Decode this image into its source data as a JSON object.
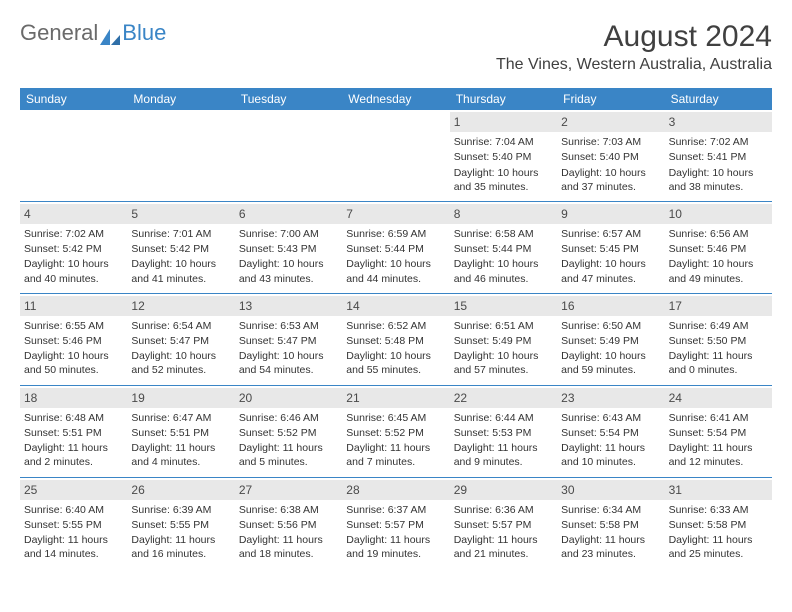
{
  "logo": {
    "general": "General",
    "blue": "Blue"
  },
  "header": {
    "monthTitle": "August 2024",
    "location": "The Vines, Western Australia, Australia"
  },
  "dayNames": [
    "Sunday",
    "Monday",
    "Tuesday",
    "Wednesday",
    "Thursday",
    "Friday",
    "Saturday"
  ],
  "weeks": [
    [
      null,
      null,
      null,
      null,
      {
        "d": "1",
        "sr": "Sunrise: 7:04 AM",
        "ss": "Sunset: 5:40 PM",
        "dl": "Daylight: 10 hours and 35 minutes."
      },
      {
        "d": "2",
        "sr": "Sunrise: 7:03 AM",
        "ss": "Sunset: 5:40 PM",
        "dl": "Daylight: 10 hours and 37 minutes."
      },
      {
        "d": "3",
        "sr": "Sunrise: 7:02 AM",
        "ss": "Sunset: 5:41 PM",
        "dl": "Daylight: 10 hours and 38 minutes."
      }
    ],
    [
      {
        "d": "4",
        "sr": "Sunrise: 7:02 AM",
        "ss": "Sunset: 5:42 PM",
        "dl": "Daylight: 10 hours and 40 minutes."
      },
      {
        "d": "5",
        "sr": "Sunrise: 7:01 AM",
        "ss": "Sunset: 5:42 PM",
        "dl": "Daylight: 10 hours and 41 minutes."
      },
      {
        "d": "6",
        "sr": "Sunrise: 7:00 AM",
        "ss": "Sunset: 5:43 PM",
        "dl": "Daylight: 10 hours and 43 minutes."
      },
      {
        "d": "7",
        "sr": "Sunrise: 6:59 AM",
        "ss": "Sunset: 5:44 PM",
        "dl": "Daylight: 10 hours and 44 minutes."
      },
      {
        "d": "8",
        "sr": "Sunrise: 6:58 AM",
        "ss": "Sunset: 5:44 PM",
        "dl": "Daylight: 10 hours and 46 minutes."
      },
      {
        "d": "9",
        "sr": "Sunrise: 6:57 AM",
        "ss": "Sunset: 5:45 PM",
        "dl": "Daylight: 10 hours and 47 minutes."
      },
      {
        "d": "10",
        "sr": "Sunrise: 6:56 AM",
        "ss": "Sunset: 5:46 PM",
        "dl": "Daylight: 10 hours and 49 minutes."
      }
    ],
    [
      {
        "d": "11",
        "sr": "Sunrise: 6:55 AM",
        "ss": "Sunset: 5:46 PM",
        "dl": "Daylight: 10 hours and 50 minutes."
      },
      {
        "d": "12",
        "sr": "Sunrise: 6:54 AM",
        "ss": "Sunset: 5:47 PM",
        "dl": "Daylight: 10 hours and 52 minutes."
      },
      {
        "d": "13",
        "sr": "Sunrise: 6:53 AM",
        "ss": "Sunset: 5:47 PM",
        "dl": "Daylight: 10 hours and 54 minutes."
      },
      {
        "d": "14",
        "sr": "Sunrise: 6:52 AM",
        "ss": "Sunset: 5:48 PM",
        "dl": "Daylight: 10 hours and 55 minutes."
      },
      {
        "d": "15",
        "sr": "Sunrise: 6:51 AM",
        "ss": "Sunset: 5:49 PM",
        "dl": "Daylight: 10 hours and 57 minutes."
      },
      {
        "d": "16",
        "sr": "Sunrise: 6:50 AM",
        "ss": "Sunset: 5:49 PM",
        "dl": "Daylight: 10 hours and 59 minutes."
      },
      {
        "d": "17",
        "sr": "Sunrise: 6:49 AM",
        "ss": "Sunset: 5:50 PM",
        "dl": "Daylight: 11 hours and 0 minutes."
      }
    ],
    [
      {
        "d": "18",
        "sr": "Sunrise: 6:48 AM",
        "ss": "Sunset: 5:51 PM",
        "dl": "Daylight: 11 hours and 2 minutes."
      },
      {
        "d": "19",
        "sr": "Sunrise: 6:47 AM",
        "ss": "Sunset: 5:51 PM",
        "dl": "Daylight: 11 hours and 4 minutes."
      },
      {
        "d": "20",
        "sr": "Sunrise: 6:46 AM",
        "ss": "Sunset: 5:52 PM",
        "dl": "Daylight: 11 hours and 5 minutes."
      },
      {
        "d": "21",
        "sr": "Sunrise: 6:45 AM",
        "ss": "Sunset: 5:52 PM",
        "dl": "Daylight: 11 hours and 7 minutes."
      },
      {
        "d": "22",
        "sr": "Sunrise: 6:44 AM",
        "ss": "Sunset: 5:53 PM",
        "dl": "Daylight: 11 hours and 9 minutes."
      },
      {
        "d": "23",
        "sr": "Sunrise: 6:43 AM",
        "ss": "Sunset: 5:54 PM",
        "dl": "Daylight: 11 hours and 10 minutes."
      },
      {
        "d": "24",
        "sr": "Sunrise: 6:41 AM",
        "ss": "Sunset: 5:54 PM",
        "dl": "Daylight: 11 hours and 12 minutes."
      }
    ],
    [
      {
        "d": "25",
        "sr": "Sunrise: 6:40 AM",
        "ss": "Sunset: 5:55 PM",
        "dl": "Daylight: 11 hours and 14 minutes."
      },
      {
        "d": "26",
        "sr": "Sunrise: 6:39 AM",
        "ss": "Sunset: 5:55 PM",
        "dl": "Daylight: 11 hours and 16 minutes."
      },
      {
        "d": "27",
        "sr": "Sunrise: 6:38 AM",
        "ss": "Sunset: 5:56 PM",
        "dl": "Daylight: 11 hours and 18 minutes."
      },
      {
        "d": "28",
        "sr": "Sunrise: 6:37 AM",
        "ss": "Sunset: 5:57 PM",
        "dl": "Daylight: 11 hours and 19 minutes."
      },
      {
        "d": "29",
        "sr": "Sunrise: 6:36 AM",
        "ss": "Sunset: 5:57 PM",
        "dl": "Daylight: 11 hours and 21 minutes."
      },
      {
        "d": "30",
        "sr": "Sunrise: 6:34 AM",
        "ss": "Sunset: 5:58 PM",
        "dl": "Daylight: 11 hours and 23 minutes."
      },
      {
        "d": "31",
        "sr": "Sunrise: 6:33 AM",
        "ss": "Sunset: 5:58 PM",
        "dl": "Daylight: 11 hours and 25 minutes."
      }
    ]
  ],
  "styling": {
    "headerBg": "#3a85c6",
    "headerText": "#ffffff",
    "dateBg": "#e8e8e8",
    "separatorColor": "#3a85c6",
    "bodyBg": "#ffffff",
    "textColor": "#333333",
    "titleColor": "#404040",
    "monthTitleFontSize": 30,
    "locationFontSize": 16,
    "dayHeaderFontSize": 12,
    "cellFontSize": 10.5,
    "logoAccent": "#3a85c6"
  }
}
